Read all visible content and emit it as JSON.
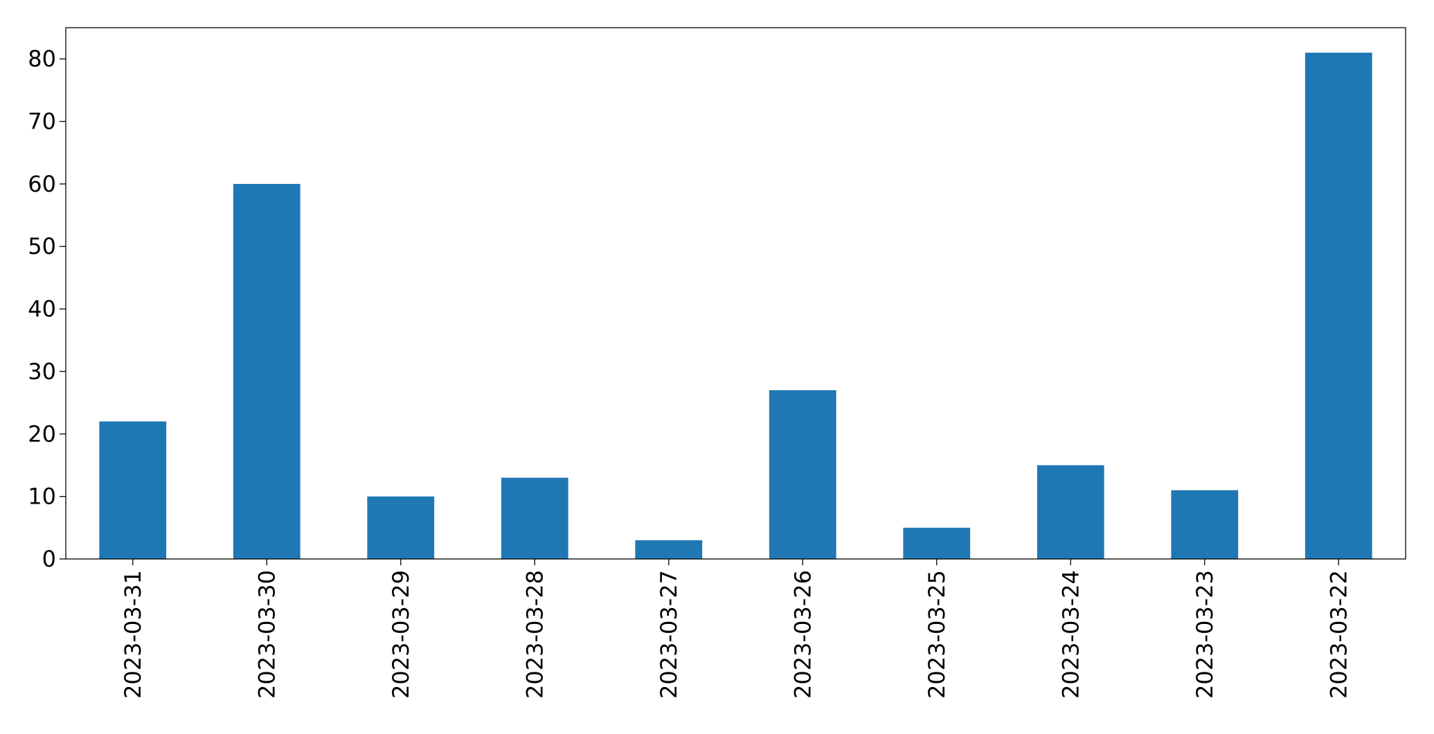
{
  "chart_data": {
    "type": "bar",
    "categories": [
      "2023-03-31",
      "2023-03-30",
      "2023-03-29",
      "2023-03-28",
      "2023-03-27",
      "2023-03-26",
      "2023-03-25",
      "2023-03-24",
      "2023-03-23",
      "2023-03-22"
    ],
    "values": [
      22,
      60,
      10,
      13,
      3,
      27,
      5,
      15,
      11,
      81
    ],
    "color": "#1f77b4",
    "ylim": [
      0,
      85
    ],
    "yticks": [
      0,
      10,
      20,
      30,
      40,
      50,
      60,
      70,
      80
    ],
    "grid": false
  }
}
